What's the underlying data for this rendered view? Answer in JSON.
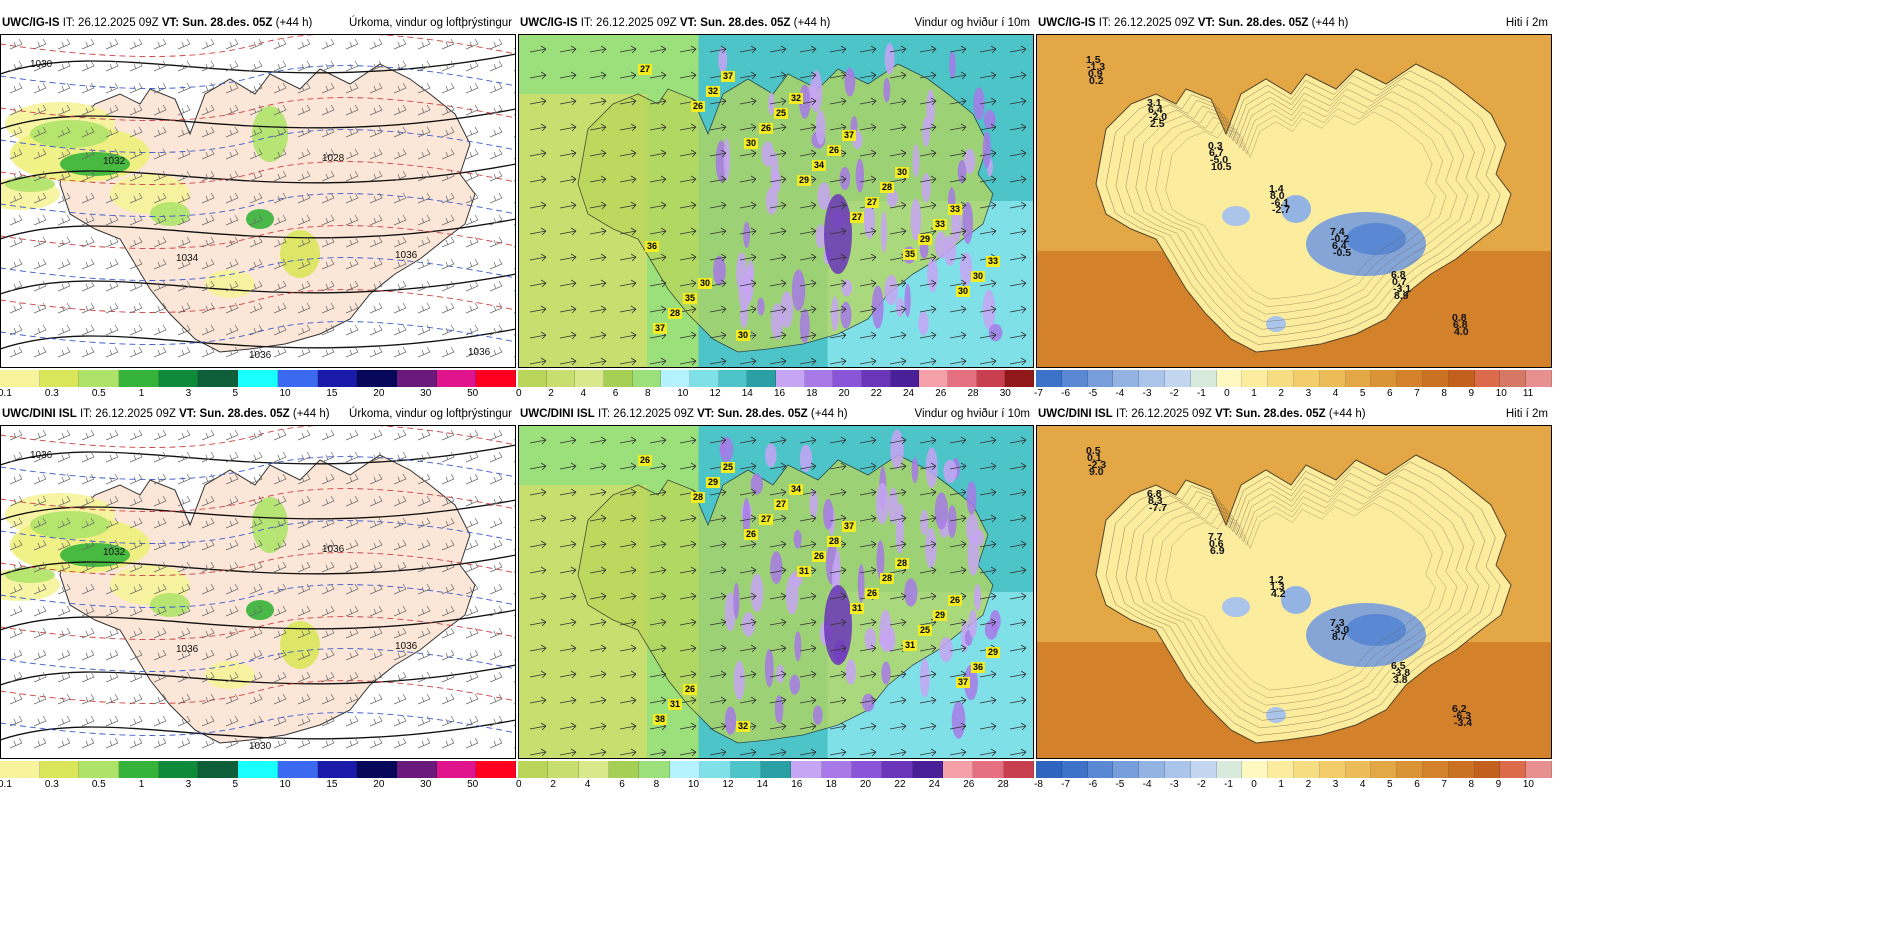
{
  "rows": [
    {
      "panels": [
        {
          "model": "UWC/IG-IS",
          "it_label": "IT:",
          "it_value": "26.12.2025 09Z",
          "vt_label": "VT:",
          "vt_value": "Sun. 28.des. 05Z",
          "lead": "(+44 h)",
          "title": "Úrkoma, vindur og loftþrýstingur",
          "colorbar": {
            "colors": [
              "#f6f39a",
              "#d9e65a",
              "#aee36a",
              "#35b33a",
              "#0f8a3a",
              "#0f5e3a",
              "#19ffff",
              "#3b6af0",
              "#1a1aa8",
              "#08085a",
              "#6a1a7a",
              "#e0148c",
              "#ff0020"
            ],
            "labels": [
              "0.1",
              "0.3",
              "0.5",
              "1",
              "3",
              "5",
              "10",
              "15",
              "20",
              "30",
              "50"
            ]
          },
          "pressure_labels": [
            "1030",
            "1032",
            "1034",
            "1036",
            "1028",
            "1036",
            "1036"
          ],
          "kind": "precip"
        },
        {
          "model": "UWC/IG-IS",
          "it_label": "IT:",
          "it_value": "26.12.2025 09Z",
          "vt_label": "VT:",
          "vt_value": "Sun. 28.des. 05Z",
          "lead": "(+44 h)",
          "title": "Vindur og hviður í 10m",
          "colorbar": {
            "colors": [
              "#b9d65a",
              "#c8de6e",
              "#d8e88a",
              "#a5cf55",
              "#9be07a",
              "#b4f2ff",
              "#7fe0e8",
              "#4cc4c8",
              "#2a9fa4",
              "#c7a5f5",
              "#a77ae8",
              "#8a55d8",
              "#6a35b8",
              "#4a2098",
              "#f5a0a8",
              "#e57080",
              "#c84050",
              "#901818"
            ],
            "labels": [
              "0",
              "2",
              "4",
              "6",
              "8",
              "10",
              "12",
              "14",
              "16",
              "18",
              "20",
              "22",
              "24",
              "26",
              "28",
              "30"
            ]
          },
          "gust_labels": [
            "27",
            "26",
            "30",
            "29",
            "27",
            "35",
            "30",
            "37",
            "32",
            "26",
            "34",
            "27",
            "29",
            "30",
            "28",
            "37",
            "25",
            "26",
            "28",
            "33",
            "33",
            "35",
            "30",
            "32",
            "37",
            "30",
            "33",
            "36",
            "30"
          ],
          "kind": "wind"
        },
        {
          "model": "UWC/IG-IS",
          "it_label": "IT:",
          "it_value": "26.12.2025 09Z",
          "vt_label": "VT:",
          "vt_value": "Sun. 28.des. 05Z",
          "lead": "(+44 h)",
          "title": "Hiti í 2m",
          "colorbar": {
            "colors": [
              "#3c72c8",
              "#5a88d2",
              "#779ddb",
              "#93b3e3",
              "#aac4ea",
              "#c3d6f0",
              "#d8eadb",
              "#fff8c0",
              "#fbec9e",
              "#f7dd82",
              "#f2cd6a",
              "#ecbc58",
              "#e4a746",
              "#db9435",
              "#d3822b",
              "#cb7124",
              "#c3601d",
              "#db6b4a",
              "#d57866",
              "#e89090"
            ],
            "labels": [
              "-7",
              "-6",
              "-5",
              "-4",
              "-3",
              "-2",
              "-1",
              "0",
              "1",
              "2",
              "3",
              "4",
              "5",
              "6",
              "7",
              "8",
              "9",
              "10",
              "11"
            ]
          },
          "temps": [
            "1.5",
            "3.1",
            "0.3",
            "1.4",
            "7.4",
            "6.8",
            "0.8",
            "-1.3",
            "6.4",
            "6.7",
            "8.0",
            "-0.2",
            "0.7",
            "6.8",
            "0.9",
            "-2.0",
            "-5.0",
            "-6.1",
            "6.4",
            "-3.1",
            "4.0",
            "0.2",
            "2.5",
            "10.5",
            "-2.7",
            "-0.5",
            "8.9"
          ],
          "kind": "temp"
        }
      ]
    },
    {
      "panels": [
        {
          "model": "UWC/DINI ISL",
          "it_label": "IT:",
          "it_value": "26.12.2025 09Z",
          "vt_label": "VT:",
          "vt_value": "Sun. 28.des. 05Z",
          "lead": "(+44 h)",
          "title": "Úrkoma, vindur og loftþrýstingur",
          "colorbar": {
            "colors": [
              "#f6f39a",
              "#d9e65a",
              "#aee36a",
              "#35b33a",
              "#0f8a3a",
              "#0f5e3a",
              "#19ffff",
              "#3b6af0",
              "#1a1aa8",
              "#08085a",
              "#6a1a7a",
              "#e0148c",
              "#ff0020"
            ],
            "labels": [
              "0.1",
              "0.3",
              "0.5",
              "1",
              "3",
              "5",
              "10",
              "15",
              "20",
              "30",
              "50"
            ]
          },
          "pressure_labels": [
            "1036",
            "1032",
            "1036",
            "1030",
            "1036",
            "1036"
          ],
          "kind": "precip"
        },
        {
          "model": "UWC/DINI ISL",
          "it_label": "IT:",
          "it_value": "26.12.2025 09Z",
          "vt_label": "VT:",
          "vt_value": "Sun. 28.des. 05Z",
          "lead": "(+44 h)",
          "title": "Vindur og hviður í 10m",
          "colorbar": {
            "colors": [
              "#b9d65a",
              "#c8de6e",
              "#d8e88a",
              "#a5cf55",
              "#9be07a",
              "#b4f2ff",
              "#7fe0e8",
              "#4cc4c8",
              "#2a9fa4",
              "#c7a5f5",
              "#a77ae8",
              "#8a55d8",
              "#6a35b8",
              "#4a2098",
              "#f5a0a8",
              "#e57080",
              "#c84050"
            ],
            "labels": [
              "0",
              "2",
              "4",
              "6",
              "8",
              "10",
              "12",
              "14",
              "16",
              "18",
              "20",
              "22",
              "24",
              "26",
              "28"
            ]
          },
          "gust_labels": [
            "26",
            "28",
            "26",
            "31",
            "31",
            "31",
            "37",
            "38",
            "29",
            "27",
            "26",
            "26",
            "25",
            "36",
            "31",
            "25",
            "27",
            "28",
            "28",
            "29",
            "29",
            "26",
            "32",
            "34",
            "37",
            "28",
            "26"
          ],
          "kind": "wind"
        },
        {
          "model": "UWC/DINI ISL",
          "it_label": "IT:",
          "it_value": "26.12.2025 09Z",
          "vt_label": "VT:",
          "vt_value": "Sun. 28.des. 05Z",
          "lead": "(+44 h)",
          "title": "Hiti í 2m",
          "colorbar": {
            "colors": [
              "#2f64c0",
              "#3c72c8",
              "#5a88d2",
              "#779ddb",
              "#93b3e3",
              "#aac4ea",
              "#c3d6f0",
              "#d8eadb",
              "#fff8c0",
              "#fbec9e",
              "#f7dd82",
              "#f2cd6a",
              "#ecbc58",
              "#e4a746",
              "#db9435",
              "#d3822b",
              "#cb7124",
              "#c3601d",
              "#db6b4a",
              "#e89090"
            ],
            "labels": [
              "-8",
              "-7",
              "-6",
              "-5",
              "-4",
              "-3",
              "-2",
              "-1",
              "0",
              "1",
              "2",
              "3",
              "4",
              "5",
              "6",
              "7",
              "8",
              "9",
              "10"
            ]
          },
          "temps": [
            "0.5",
            "6.8",
            "7.7",
            "1.2",
            "7.3",
            "6.5",
            "6.2",
            "0.1",
            "8.3",
            "0.6",
            "1.3",
            "-3.0",
            "-3.8",
            "-6.3",
            "-2.3",
            "-7.7",
            "6.9",
            "4.2",
            "8.7",
            "3.8",
            "-3.4",
            "9.0"
          ],
          "kind": "temp"
        }
      ]
    }
  ]
}
